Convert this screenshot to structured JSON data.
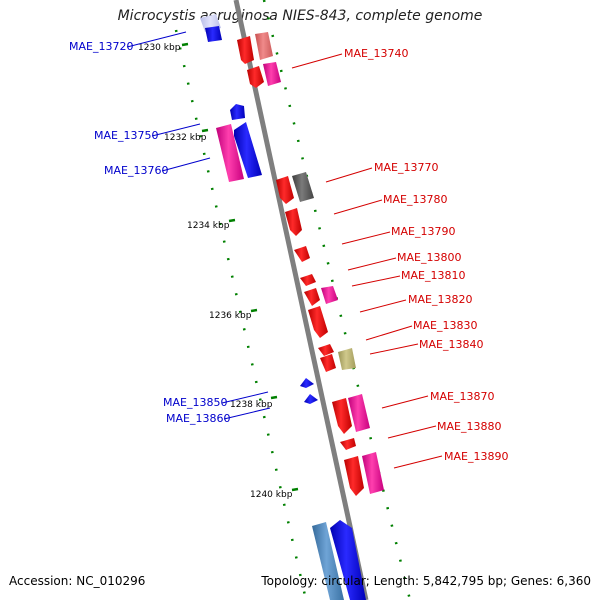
{
  "title": "Microcystis aeruginosa NIES-843, complete genome",
  "accession": "Accession: NC_010296",
  "summary": "Topology: circular; Length: 5,842,795 bp; Genes: 6,360",
  "colors": {
    "backbone": "#7f7f7f",
    "forward_gene": "#ff0000",
    "reverse_gene": "#0000ff",
    "forward_label": "#d40000",
    "reverse_label": "#0000cc",
    "tick": "#008000"
  },
  "ticks": [
    "1230 kbp",
    "1232 kbp",
    "1234 kbp",
    "1236 kbp",
    "1238 kbp",
    "1240 kbp"
  ],
  "forward_labels": [
    "MAE_13740",
    "MAE_13770",
    "MAE_13780",
    "MAE_13790",
    "MAE_13800",
    "MAE_13810",
    "MAE_13820",
    "MAE_13830",
    "MAE_13840",
    "MAE_13870",
    "MAE_13880",
    "MAE_13890"
  ],
  "reverse_labels": [
    "MAE_13720",
    "MAE_13750",
    "MAE_13760",
    "MAE_13850",
    "MAE_13860"
  ]
}
